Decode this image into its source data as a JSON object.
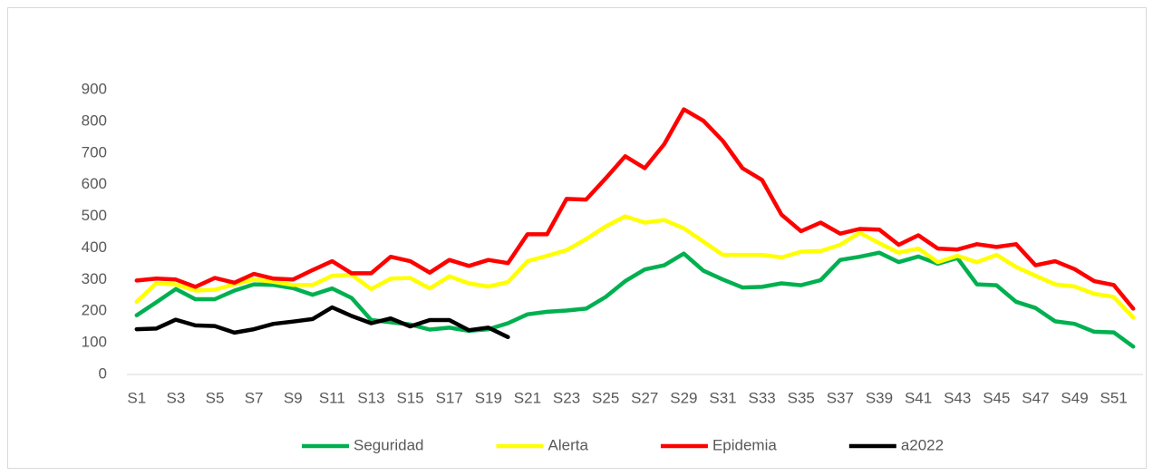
{
  "chart_data": {
    "type": "line",
    "categories": [
      "S1",
      null,
      "S3",
      null,
      "S5",
      null,
      "S7",
      null,
      "S9",
      null,
      "S11",
      null,
      "S13",
      null,
      "S15",
      null,
      "S17",
      null,
      "S19",
      null,
      "S21",
      null,
      "S23",
      null,
      "S25",
      null,
      "S27",
      null,
      "S29",
      null,
      "S31",
      null,
      "S33",
      null,
      "S35",
      null,
      "S37",
      null,
      "S39",
      null,
      "S41",
      null,
      "S43",
      null,
      "S45",
      null,
      "S47",
      null,
      "S49",
      null,
      "S51",
      null
    ],
    "series": [
      {
        "name": "Seguridad",
        "color": "#00b050",
        "values": [
          187,
          228,
          270,
          238,
          238,
          265,
          285,
          283,
          273,
          252,
          272,
          242,
          172,
          165,
          158,
          142,
          148,
          138,
          143,
          162,
          190,
          198,
          202,
          208,
          245,
          295,
          332,
          345,
          382,
          328,
          300,
          275,
          277,
          288,
          282,
          298,
          362,
          372,
          385,
          355,
          373,
          350,
          368,
          285,
          282,
          230,
          210,
          168,
          160,
          135,
          133,
          88
        ]
      },
      {
        "name": "Alerta",
        "color": "#ffff00",
        "values": [
          230,
          288,
          285,
          265,
          268,
          285,
          300,
          293,
          283,
          283,
          312,
          315,
          270,
          303,
          305,
          272,
          310,
          288,
          278,
          292,
          358,
          375,
          393,
          428,
          468,
          500,
          480,
          488,
          462,
          420,
          378,
          378,
          378,
          370,
          388,
          390,
          410,
          448,
          415,
          385,
          398,
          355,
          375,
          355,
          378,
          340,
          312,
          285,
          278,
          255,
          245,
          180
        ]
      },
      {
        "name": "Epidemia",
        "color": "#ff0000",
        "values": [
          297,
          303,
          300,
          277,
          305,
          290,
          318,
          303,
          300,
          330,
          358,
          320,
          320,
          372,
          358,
          322,
          362,
          343,
          362,
          352,
          443,
          443,
          555,
          553,
          620,
          690,
          652,
          728,
          838,
          802,
          738,
          652,
          615,
          505,
          453,
          480,
          445,
          460,
          458,
          410,
          440,
          398,
          395,
          412,
          403,
          412,
          345,
          358,
          333,
          295,
          283,
          208
        ]
      },
      {
        "name": "a2022",
        "color": "#000000",
        "values": [
          143,
          145,
          173,
          155,
          153,
          132,
          143,
          160,
          167,
          175,
          212,
          185,
          162,
          177,
          152,
          172,
          172,
          140,
          148,
          118,
          null,
          null,
          null,
          null,
          null,
          null,
          null,
          null,
          null,
          null,
          null,
          null,
          null,
          null,
          null,
          null,
          null,
          null,
          null,
          null,
          null,
          null,
          null,
          null,
          null,
          null,
          null,
          null,
          null,
          null,
          null,
          null
        ]
      }
    ],
    "ylim": [
      0,
      900
    ],
    "yticks": [
      0,
      100,
      200,
      300,
      400,
      500,
      600,
      700,
      800,
      900
    ],
    "grid": false,
    "legend": "bottom"
  }
}
